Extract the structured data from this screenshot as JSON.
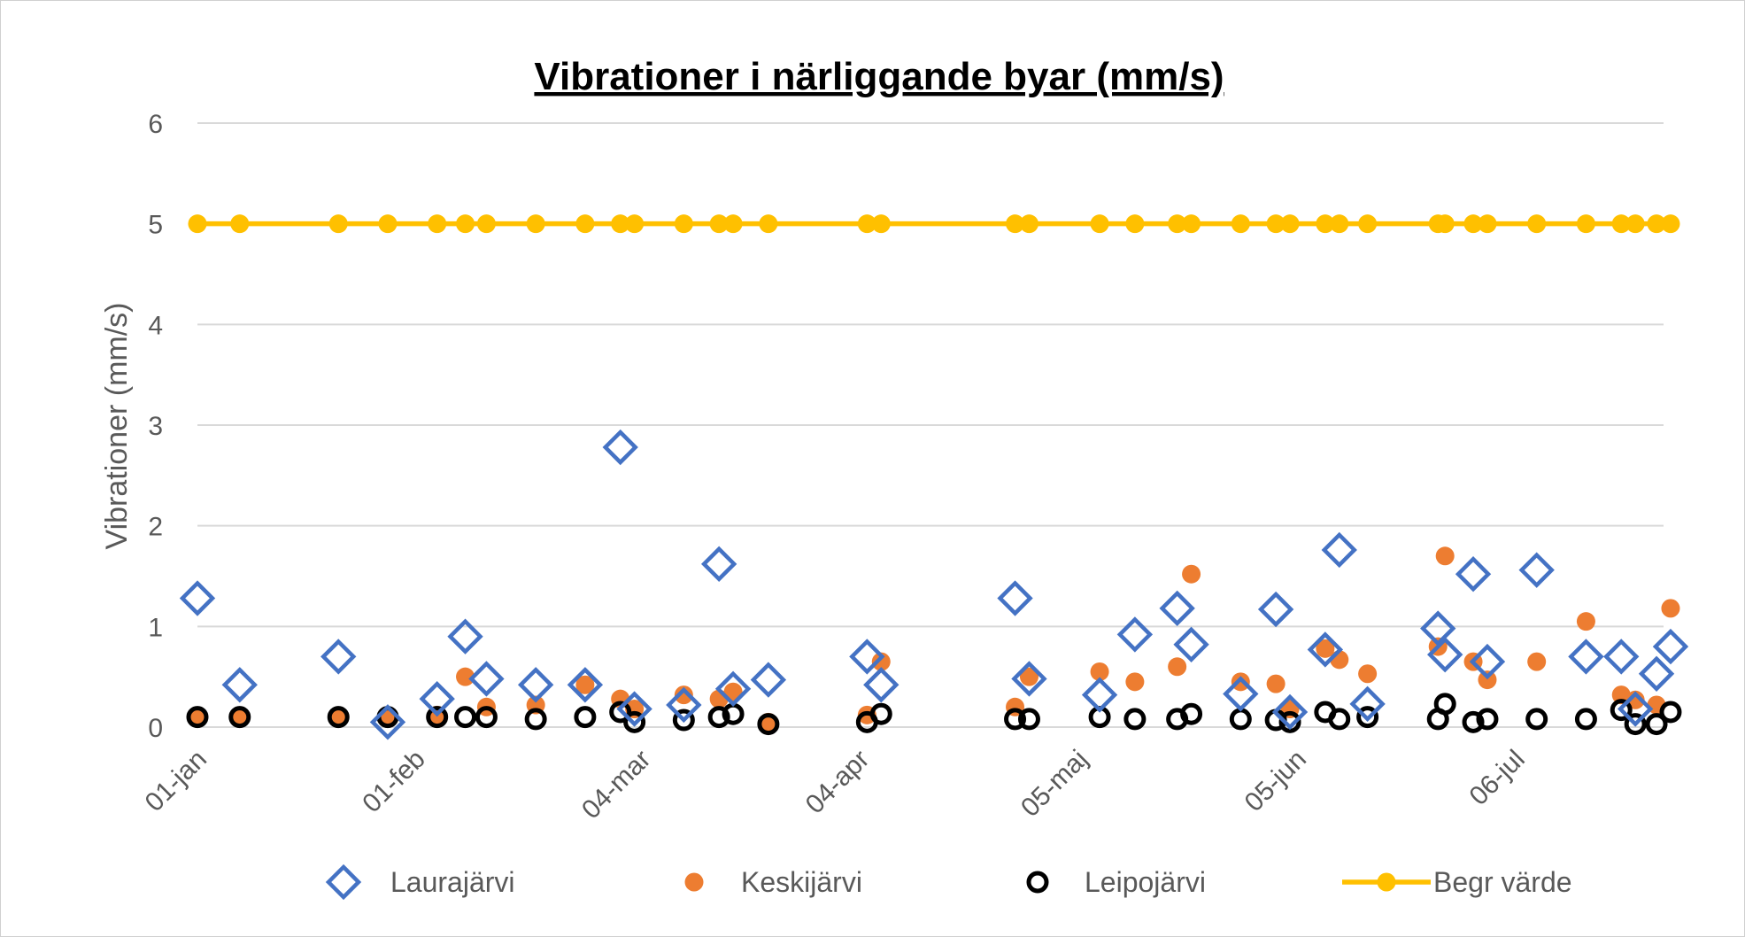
{
  "chart_data": {
    "type": "scatter",
    "title": "Vibrationer i närliggande byar (mm/s)",
    "xlabel": "",
    "ylabel": "Vibrationer (mm/s)",
    "x_axis": {
      "kind": "date",
      "min": "2020-01-01",
      "max": "2020-07-27",
      "tick_dates": [
        "2020-01-01",
        "2020-02-01",
        "2020-03-04",
        "2020-04-04",
        "2020-05-05",
        "2020-06-05",
        "2020-07-06"
      ],
      "tick_labels": [
        "01-jan",
        "01-feb",
        "04-mar",
        "04-apr",
        "05-maj",
        "05-jun",
        "06-jul"
      ]
    },
    "ylim": [
      0,
      6
    ],
    "y_ticks": [
      0,
      1,
      2,
      3,
      4,
      5,
      6
    ],
    "grid": "horizontal",
    "legend_position": "bottom",
    "series": [
      {
        "name": "Laurajärvi",
        "marker": "diamond-open",
        "color": "#4472C4",
        "points": [
          [
            "2020-01-01",
            1.28
          ],
          [
            "2020-01-07",
            0.42
          ],
          [
            "2020-01-21",
            0.7
          ],
          [
            "2020-01-28",
            0.05
          ],
          [
            "2020-02-04",
            0.28
          ],
          [
            "2020-02-08",
            0.9
          ],
          [
            "2020-02-11",
            0.48
          ],
          [
            "2020-02-18",
            0.42
          ],
          [
            "2020-02-25",
            0.42
          ],
          [
            "2020-03-01",
            2.78
          ],
          [
            "2020-03-03",
            0.18
          ],
          [
            "2020-03-10",
            0.22
          ],
          [
            "2020-03-15",
            1.62
          ],
          [
            "2020-03-17",
            0.38
          ],
          [
            "2020-03-22",
            0.47
          ],
          [
            "2020-04-05",
            0.7
          ],
          [
            "2020-04-07",
            0.42
          ],
          [
            "2020-04-26",
            1.28
          ],
          [
            "2020-04-28",
            0.48
          ],
          [
            "2020-05-08",
            0.32
          ],
          [
            "2020-05-13",
            0.92
          ],
          [
            "2020-05-19",
            1.18
          ],
          [
            "2020-05-21",
            0.82
          ],
          [
            "2020-05-28",
            0.33
          ],
          [
            "2020-06-02",
            1.17
          ],
          [
            "2020-06-04",
            0.15
          ],
          [
            "2020-06-09",
            0.77
          ],
          [
            "2020-06-11",
            1.76
          ],
          [
            "2020-06-15",
            0.23
          ],
          [
            "2020-06-25",
            0.98
          ],
          [
            "2020-06-26",
            0.72
          ],
          [
            "2020-06-30",
            1.52
          ],
          [
            "2020-07-02",
            0.65
          ],
          [
            "2020-07-09",
            1.56
          ],
          [
            "2020-07-16",
            0.7
          ],
          [
            "2020-07-21",
            0.7
          ],
          [
            "2020-07-23",
            0.18
          ],
          [
            "2020-07-26",
            0.53
          ],
          [
            "2020-07-28",
            0.8
          ]
        ]
      },
      {
        "name": "Keskijärvi",
        "marker": "circle-filled",
        "color": "#ED7D31",
        "points": [
          [
            "2020-01-01",
            0.1
          ],
          [
            "2020-01-07",
            0.1
          ],
          [
            "2020-01-21",
            0.1
          ],
          [
            "2020-01-28",
            0.1
          ],
          [
            "2020-02-04",
            0.12
          ],
          [
            "2020-02-08",
            0.5
          ],
          [
            "2020-02-11",
            0.2
          ],
          [
            "2020-02-18",
            0.22
          ],
          [
            "2020-02-25",
            0.42
          ],
          [
            "2020-03-01",
            0.28
          ],
          [
            "2020-03-03",
            0.18
          ],
          [
            "2020-03-10",
            0.32
          ],
          [
            "2020-03-15",
            0.28
          ],
          [
            "2020-03-17",
            0.35
          ],
          [
            "2020-03-22",
            0.05
          ],
          [
            "2020-04-05",
            0.12
          ],
          [
            "2020-04-07",
            0.65
          ],
          [
            "2020-04-26",
            0.2
          ],
          [
            "2020-04-28",
            0.5
          ],
          [
            "2020-05-08",
            0.55
          ],
          [
            "2020-05-13",
            0.45
          ],
          [
            "2020-05-19",
            0.6
          ],
          [
            "2020-05-21",
            1.52
          ],
          [
            "2020-05-28",
            0.45
          ],
          [
            "2020-06-02",
            0.43
          ],
          [
            "2020-06-04",
            0.18
          ],
          [
            "2020-06-09",
            0.78
          ],
          [
            "2020-06-11",
            0.67
          ],
          [
            "2020-06-15",
            0.53
          ],
          [
            "2020-06-25",
            0.8
          ],
          [
            "2020-06-26",
            1.7
          ],
          [
            "2020-06-30",
            0.65
          ],
          [
            "2020-07-02",
            0.47
          ],
          [
            "2020-07-09",
            0.65
          ],
          [
            "2020-07-16",
            1.05
          ],
          [
            "2020-07-21",
            0.32
          ],
          [
            "2020-07-23",
            0.27
          ],
          [
            "2020-07-26",
            0.22
          ],
          [
            "2020-07-28",
            1.18
          ]
        ]
      },
      {
        "name": "Leipojärvi",
        "marker": "circle-open",
        "color": "#000000",
        "points": [
          [
            "2020-01-01",
            0.1
          ],
          [
            "2020-01-07",
            0.1
          ],
          [
            "2020-01-21",
            0.1
          ],
          [
            "2020-01-28",
            0.1
          ],
          [
            "2020-02-04",
            0.1
          ],
          [
            "2020-02-08",
            0.1
          ],
          [
            "2020-02-11",
            0.1
          ],
          [
            "2020-02-18",
            0.08
          ],
          [
            "2020-02-25",
            0.1
          ],
          [
            "2020-03-01",
            0.15
          ],
          [
            "2020-03-03",
            0.05
          ],
          [
            "2020-03-10",
            0.07
          ],
          [
            "2020-03-15",
            0.1
          ],
          [
            "2020-03-17",
            0.13
          ],
          [
            "2020-03-22",
            0.03
          ],
          [
            "2020-04-05",
            0.05
          ],
          [
            "2020-04-07",
            0.13
          ],
          [
            "2020-04-26",
            0.08
          ],
          [
            "2020-04-28",
            0.08
          ],
          [
            "2020-05-08",
            0.1
          ],
          [
            "2020-05-13",
            0.08
          ],
          [
            "2020-05-19",
            0.08
          ],
          [
            "2020-05-21",
            0.13
          ],
          [
            "2020-05-28",
            0.08
          ],
          [
            "2020-06-02",
            0.07
          ],
          [
            "2020-06-04",
            0.05
          ],
          [
            "2020-06-09",
            0.15
          ],
          [
            "2020-06-11",
            0.08
          ],
          [
            "2020-06-15",
            0.1
          ],
          [
            "2020-06-25",
            0.08
          ],
          [
            "2020-06-26",
            0.23
          ],
          [
            "2020-06-30",
            0.05
          ],
          [
            "2020-07-02",
            0.08
          ],
          [
            "2020-07-09",
            0.08
          ],
          [
            "2020-07-16",
            0.08
          ],
          [
            "2020-07-21",
            0.17
          ],
          [
            "2020-07-23",
            0.03
          ],
          [
            "2020-07-26",
            0.03
          ],
          [
            "2020-07-28",
            0.15
          ]
        ]
      },
      {
        "name": "Begr värde",
        "marker": "circle-filled-line",
        "color": "#FFC000",
        "points": [
          [
            "2020-01-01",
            5
          ],
          [
            "2020-01-07",
            5
          ],
          [
            "2020-01-21",
            5
          ],
          [
            "2020-01-28",
            5
          ],
          [
            "2020-02-04",
            5
          ],
          [
            "2020-02-08",
            5
          ],
          [
            "2020-02-11",
            5
          ],
          [
            "2020-02-18",
            5
          ],
          [
            "2020-02-25",
            5
          ],
          [
            "2020-03-01",
            5
          ],
          [
            "2020-03-03",
            5
          ],
          [
            "2020-03-10",
            5
          ],
          [
            "2020-03-15",
            5
          ],
          [
            "2020-03-17",
            5
          ],
          [
            "2020-03-22",
            5
          ],
          [
            "2020-04-05",
            5
          ],
          [
            "2020-04-07",
            5
          ],
          [
            "2020-04-26",
            5
          ],
          [
            "2020-04-28",
            5
          ],
          [
            "2020-05-08",
            5
          ],
          [
            "2020-05-13",
            5
          ],
          [
            "2020-05-19",
            5
          ],
          [
            "2020-05-21",
            5
          ],
          [
            "2020-05-28",
            5
          ],
          [
            "2020-06-02",
            5
          ],
          [
            "2020-06-04",
            5
          ],
          [
            "2020-06-09",
            5
          ],
          [
            "2020-06-11",
            5
          ],
          [
            "2020-06-15",
            5
          ],
          [
            "2020-06-25",
            5
          ],
          [
            "2020-06-26",
            5
          ],
          [
            "2020-06-30",
            5
          ],
          [
            "2020-07-02",
            5
          ],
          [
            "2020-07-09",
            5
          ],
          [
            "2020-07-16",
            5
          ],
          [
            "2020-07-21",
            5
          ],
          [
            "2020-07-23",
            5
          ],
          [
            "2020-07-26",
            5
          ],
          [
            "2020-07-28",
            5
          ]
        ]
      }
    ]
  }
}
